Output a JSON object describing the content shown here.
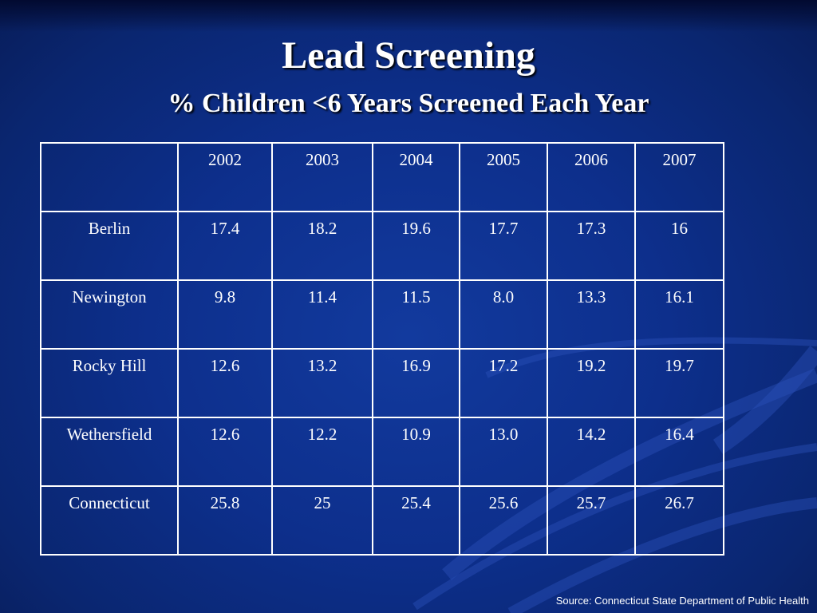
{
  "slide": {
    "title": "Lead Screening",
    "subtitle": "% Children <6 Years Screened Each Year",
    "source": "Source: Connecticut State Department of Public Health"
  },
  "table": {
    "headers": [
      "",
      "2002",
      "2003",
      "2004",
      "2005",
      "2006",
      "2007"
    ],
    "rows": [
      {
        "label": "Berlin",
        "values": [
          "17.4",
          "18.2",
          "19.6",
          "17.7",
          "17.3",
          "16"
        ]
      },
      {
        "label": "Newington",
        "values": [
          "9.8",
          "11.4",
          "11.5",
          "8.0",
          "13.3",
          "16.1"
        ]
      },
      {
        "label": "Rocky Hill",
        "values": [
          "12.6",
          "13.2",
          "16.9",
          "17.2",
          "19.2",
          "19.7"
        ]
      },
      {
        "label": "Wethersfield",
        "values": [
          "12.6",
          "12.2",
          "10.9",
          "13.0",
          "14.2",
          "16.4"
        ]
      },
      {
        "label": "Connecticut",
        "values": [
          "25.8",
          "25",
          "25.4",
          "25.6",
          "25.7",
          "26.7"
        ]
      }
    ]
  },
  "colors": {
    "background": "#0d2f8c",
    "text": "#ffffff",
    "grid": "#ffffff"
  }
}
